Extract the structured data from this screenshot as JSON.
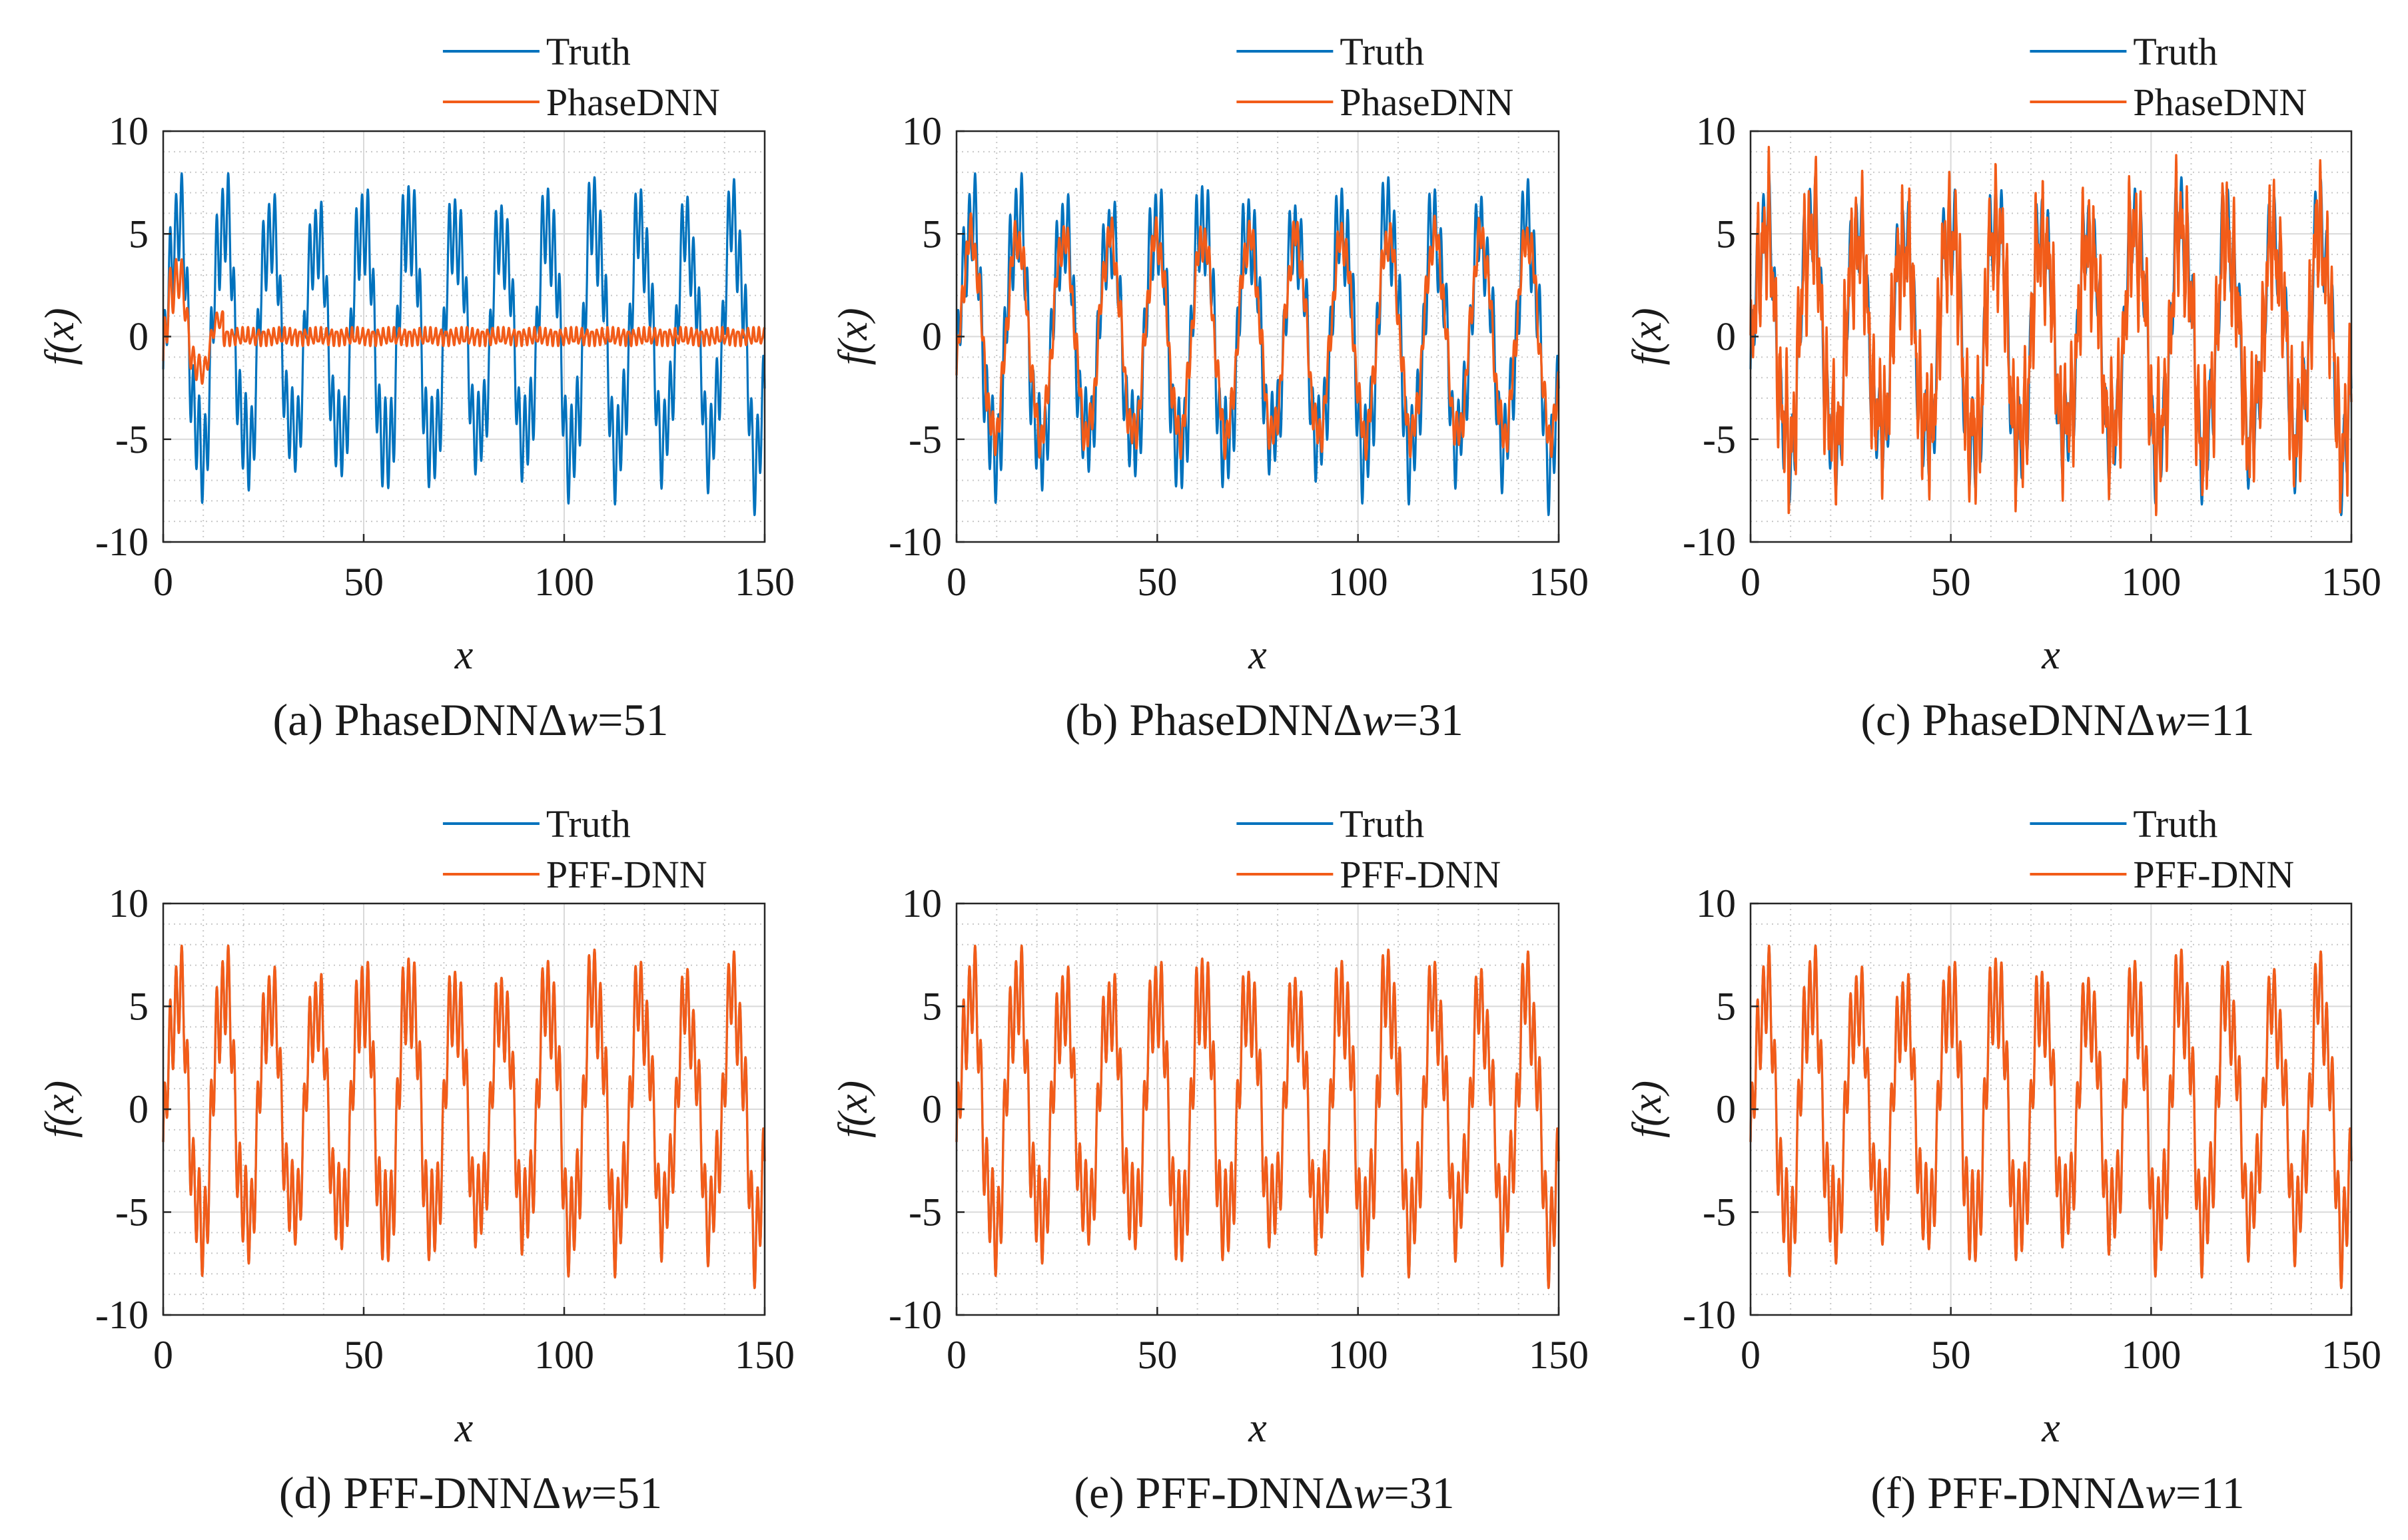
{
  "figure": {
    "colors": {
      "truth": "#0072BD",
      "prediction": "#F25C19",
      "grid": "#c8c8c8",
      "axis": "#262626"
    }
  },
  "chart_data": [
    {
      "id": "a",
      "type": "line",
      "caption": {
        "label": "(a) ",
        "method": "PhaseDNN",
        "delta": "Δ",
        "w": "w",
        "value": "=51"
      },
      "xlabel": "x",
      "ylabel": "f(x)",
      "xlim": [
        0,
        150
      ],
      "ylim": [
        -10,
        10
      ],
      "xticks": [
        0,
        50,
        100,
        150
      ],
      "yticks": [
        -10,
        -5,
        0,
        5,
        10
      ],
      "grid": true,
      "minor_grid": true,
      "legend": "top-right",
      "series": [
        {
          "name": "Truth",
          "color": "#0072BD",
          "function": "oscillatory signal, period ~11.5, amplitude ~8-10"
        },
        {
          "name": "PhaseDNN",
          "color": "#F25C19",
          "fit": 0.1,
          "note": "captures signal only near x<15, near zero elsewhere"
        }
      ]
    },
    {
      "id": "b",
      "type": "line",
      "caption": {
        "label": "(b) ",
        "method": "PhaseDNN",
        "delta": "Δ",
        "w": "w",
        "value": "=31"
      },
      "xlabel": "x",
      "ylabel": "f(x)",
      "xlim": [
        0,
        150
      ],
      "ylim": [
        -10,
        10
      ],
      "xticks": [
        0,
        50,
        100,
        150
      ],
      "yticks": [
        -10,
        -5,
        0,
        5,
        10
      ],
      "grid": true,
      "minor_grid": true,
      "legend": "top-right",
      "series": [
        {
          "name": "Truth",
          "color": "#0072BD"
        },
        {
          "name": "PhaseDNN",
          "color": "#F25C19",
          "fit": 0.5,
          "note": "captures low-frequency envelope only (amplitude ~5)"
        }
      ]
    },
    {
      "id": "c",
      "type": "line",
      "caption": {
        "label": "(c) ",
        "method": "PhaseDNN",
        "delta": "Δ",
        "w": "w",
        "value": "=11"
      },
      "xlabel": "x",
      "ylabel": "f(x)",
      "xlim": [
        0,
        150
      ],
      "ylim": [
        -10,
        10
      ],
      "xticks": [
        0,
        50,
        100,
        150
      ],
      "yticks": [
        -10,
        -5,
        0,
        5,
        10
      ],
      "grid": true,
      "minor_grid": true,
      "legend": "top-right",
      "series": [
        {
          "name": "Truth",
          "color": "#0072BD"
        },
        {
          "name": "PhaseDNN",
          "color": "#F25C19",
          "fit": 0.85,
          "note": "close to truth with visible noise"
        }
      ]
    },
    {
      "id": "d",
      "type": "line",
      "caption": {
        "label": "(d) ",
        "method": "PFF-DNN",
        "delta": "Δ",
        "w": "w",
        "value": "=51"
      },
      "xlabel": "x",
      "ylabel": "f(x)",
      "xlim": [
        0,
        150
      ],
      "ylim": [
        -10,
        10
      ],
      "xticks": [
        0,
        50,
        100,
        150
      ],
      "yticks": [
        -10,
        -5,
        0,
        5,
        10
      ],
      "grid": true,
      "minor_grid": true,
      "legend": "top-right",
      "series": [
        {
          "name": "Truth",
          "color": "#0072BD"
        },
        {
          "name": "PFF-DNN",
          "color": "#F25C19",
          "fit": 1.0,
          "note": "overlaps truth"
        }
      ]
    },
    {
      "id": "e",
      "type": "line",
      "caption": {
        "label": "(e) ",
        "method": "PFF-DNN",
        "delta": "Δ",
        "w": "w",
        "value": "=31"
      },
      "xlabel": "x",
      "ylabel": "f(x)",
      "xlim": [
        0,
        150
      ],
      "ylim": [
        -10,
        10
      ],
      "xticks": [
        0,
        50,
        100,
        150
      ],
      "yticks": [
        -10,
        -5,
        0,
        5,
        10
      ],
      "grid": true,
      "minor_grid": true,
      "legend": "top-right",
      "series": [
        {
          "name": "Truth",
          "color": "#0072BD"
        },
        {
          "name": "PFF-DNN",
          "color": "#F25C19",
          "fit": 1.0,
          "note": "overlaps truth"
        }
      ]
    },
    {
      "id": "f",
      "type": "line",
      "caption": {
        "label": "(f) ",
        "method": "PFF-DNN",
        "delta": "Δ",
        "w": "w",
        "value": "=11"
      },
      "xlabel": "x",
      "ylabel": "f(x)",
      "xlim": [
        0,
        150
      ],
      "ylim": [
        -10,
        10
      ],
      "xticks": [
        0,
        50,
        100,
        150
      ],
      "yticks": [
        -10,
        -5,
        0,
        5,
        10
      ],
      "grid": true,
      "minor_grid": true,
      "legend": "top-right",
      "series": [
        {
          "name": "Truth",
          "color": "#0072BD"
        },
        {
          "name": "PFF-DNN",
          "color": "#F25C19",
          "fit": 1.0,
          "note": "overlaps truth"
        }
      ]
    }
  ]
}
